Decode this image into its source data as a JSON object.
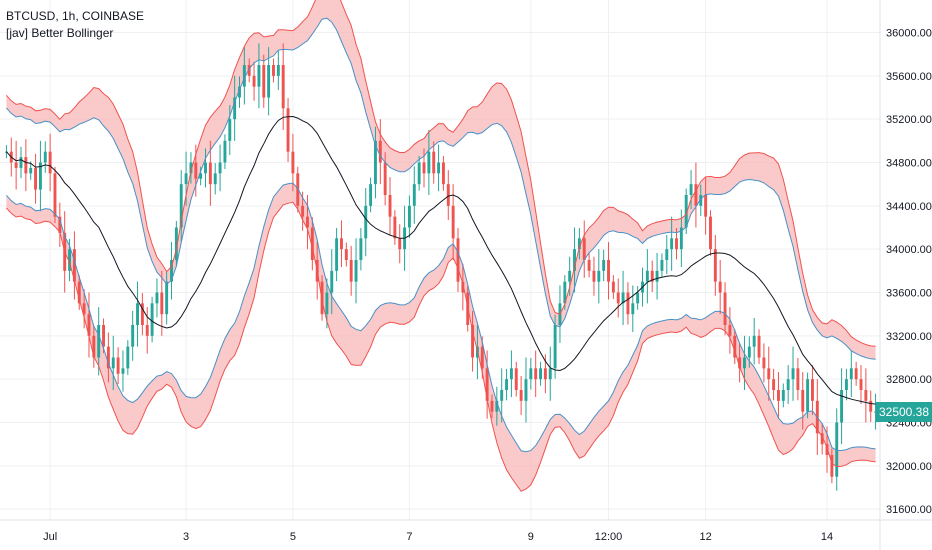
{
  "legend": {
    "symbol_line": "BTCUSD, 1h, COINBASE",
    "indicator_line": "[jav] Better Bollinger"
  },
  "last_price": "32500.38",
  "colors": {
    "up": "#26a69a",
    "down": "#ef5350",
    "band_line": "#ef5350",
    "band_fill": "#f8b7b7",
    "inner_band": "#4a90c8",
    "basis": "#131722",
    "grid": "#eef0f3",
    "price_tag": "#26a69a"
  },
  "chart_data": {
    "type": "line",
    "title": "BTCUSD, 1h, COINBASE",
    "indicator": "[jav] Better Bollinger",
    "y_axis_side": "right",
    "ylim": [
      31500,
      36300
    ],
    "y_ticks": [
      31600,
      32000,
      32400,
      32800,
      33200,
      33600,
      34000,
      34400,
      34800,
      35200,
      35600,
      36000
    ],
    "y_tick_labels": [
      "31600.00",
      "32000.00",
      "32400.00",
      "32800.00",
      "33200.00",
      "33600.00",
      "34000.00",
      "34400.00",
      "34800.00",
      "35200.00",
      "35600.00",
      "36000.00"
    ],
    "x_tick_labels": [
      "Jul",
      "3",
      "5",
      "7",
      "9",
      "12:00",
      "12",
      "14"
    ],
    "x_tick_index": [
      9,
      37,
      59,
      83,
      108,
      124,
      144,
      169
    ],
    "grid": true,
    "series": [
      {
        "name": "close",
        "values": [
          34900,
          34800,
          34750,
          34850,
          34700,
          34750,
          34550,
          34800,
          34900,
          34700,
          34300,
          34150,
          33800,
          34000,
          33700,
          33500,
          33400,
          33200,
          33000,
          33300,
          33100,
          32900,
          33000,
          32850,
          32900,
          33100,
          33300,
          33500,
          33300,
          33200,
          33500,
          33600,
          33400,
          33700,
          33900,
          34200,
          34600,
          34700,
          34800,
          34650,
          34700,
          34800,
          34600,
          34700,
          34800,
          35000,
          35200,
          35400,
          35500,
          35700,
          35600,
          35500,
          35700,
          35400,
          35700,
          35600,
          35700,
          35300,
          34900,
          34700,
          34400,
          34300,
          34200,
          33900,
          33700,
          33400,
          33600,
          33800,
          34100,
          34000,
          33900,
          33700,
          33900,
          34100,
          34400,
          34600,
          35000,
          34800,
          34500,
          34300,
          34100,
          34000,
          34200,
          34400,
          34600,
          34800,
          34700,
          34900,
          34700,
          34800,
          34600,
          34400,
          34100,
          33700,
          33600,
          33300,
          33000,
          33100,
          32900,
          32600,
          32500,
          32600,
          32700,
          32800,
          32900,
          32700,
          32600,
          32800,
          32900,
          32800,
          32900,
          32800,
          32900,
          33300,
          33500,
          33700,
          33800,
          34000,
          34100,
          33900,
          33800,
          33700,
          33800,
          33900,
          33700,
          33600,
          33500,
          33600,
          33400,
          33500,
          33600,
          33700,
          33800,
          33700,
          33800,
          33900,
          34000,
          34100,
          34000,
          34200,
          34500,
          34600,
          34400,
          34500,
          34300,
          34000,
          33700,
          33600,
          33300,
          33200,
          33000,
          32900,
          33000,
          33100,
          33200,
          33000,
          32900,
          32800,
          32700,
          32600,
          32700,
          32800,
          32900,
          32700,
          32500,
          32800,
          32600,
          32300,
          32200,
          32100,
          31900,
          32400,
          32700,
          32800,
          32900,
          32800,
          32700,
          32600,
          32500,
          32500
        ]
      },
      {
        "name": "basis",
        "values": []
      },
      {
        "name": "upper band",
        "values": []
      },
      {
        "name": "lower band",
        "values": []
      }
    ]
  }
}
